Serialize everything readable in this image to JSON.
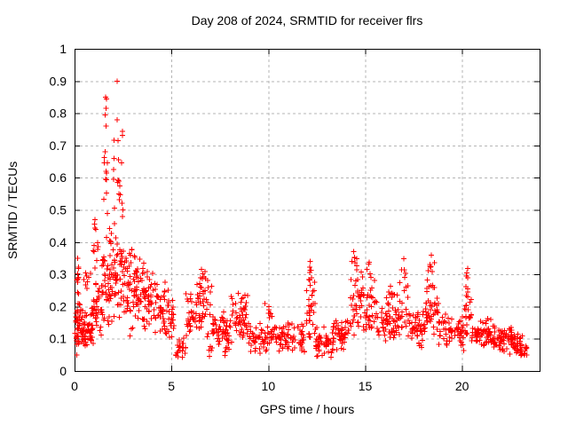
{
  "chart_data": {
    "type": "scatter",
    "title": "Day 208 of 2024, SRMTID for receiver flrs",
    "xlabel": "GPS time / hours",
    "ylabel": "SRMTID / TECUs",
    "xlim": [
      0,
      24
    ],
    "ylim": [
      0,
      1
    ],
    "grid": true,
    "legend": "none",
    "marker": "plus",
    "marker_color": "#ff0000",
    "grid_color": "#b5b5b5",
    "border_color": "#000000",
    "background_color": "#ffffff",
    "xticks": {
      "values": [
        0,
        5,
        10,
        15,
        20
      ],
      "labels": [
        "0",
        "5",
        "10",
        "15",
        "20"
      ]
    },
    "yticks": {
      "values": [
        0,
        0.1,
        0.2,
        0.3,
        0.4,
        0.5,
        0.6,
        0.7,
        0.8,
        0.9,
        1
      ],
      "labels": [
        "0",
        "0.1",
        "0.2",
        "0.3",
        "0.4",
        "0.5",
        "0.6",
        "0.7",
        "0.8",
        "0.9",
        "1"
      ]
    },
    "seed": 208,
    "notable_points": [
      [
        2.2,
        0.9
      ],
      [
        1.6,
        0.85
      ],
      [
        1.64,
        0.845
      ],
      [
        1.62,
        0.815
      ],
      [
        1.58,
        0.795
      ],
      [
        2.2,
        0.78
      ],
      [
        1.62,
        0.76
      ],
      [
        2.24,
        0.715
      ],
      [
        1.58,
        0.68
      ],
      [
        2.26,
        0.655
      ],
      [
        1.63,
        0.62
      ],
      [
        2.3,
        0.59
      ],
      [
        2.21,
        0.585
      ],
      [
        2.34,
        0.575
      ],
      [
        2.3,
        0.55
      ],
      [
        2.45,
        0.52
      ],
      [
        2.06,
        0.505
      ],
      [
        2.5,
        0.5
      ],
      [
        0.15,
        0.35
      ],
      [
        1.05,
        0.47
      ],
      [
        1.1,
        0.44
      ],
      [
        12.15,
        0.34
      ],
      [
        14.4,
        0.37
      ],
      [
        14.46,
        0.352
      ],
      [
        15.2,
        0.338
      ],
      [
        17.0,
        0.348
      ],
      [
        18.42,
        0.36
      ],
      [
        18.35,
        0.33
      ],
      [
        20.3,
        0.318
      ],
      [
        6.55,
        0.315
      ]
    ],
    "density_segments": [
      [
        0.02,
        0.3,
        0.04,
        0.22,
        40
      ],
      [
        0.08,
        0.22,
        0.2,
        0.35,
        10
      ],
      [
        0.3,
        0.9,
        0.06,
        0.2,
        55
      ],
      [
        0.45,
        0.85,
        0.2,
        0.33,
        8
      ],
      [
        0.9,
        1.4,
        0.08,
        0.3,
        40
      ],
      [
        0.95,
        1.25,
        0.3,
        0.47,
        10
      ],
      [
        1.4,
        1.9,
        0.1,
        0.45,
        50
      ],
      [
        1.5,
        1.78,
        0.45,
        0.72,
        9
      ],
      [
        1.9,
        2.55,
        0.12,
        0.5,
        55
      ],
      [
        2.0,
        2.5,
        0.5,
        0.78,
        10
      ],
      [
        2.55,
        3.1,
        0.1,
        0.42,
        45
      ],
      [
        3.1,
        3.6,
        0.12,
        0.38,
        42
      ],
      [
        3.6,
        4.3,
        0.1,
        0.33,
        48
      ],
      [
        4.3,
        4.9,
        0.07,
        0.3,
        40
      ],
      [
        4.9,
        5.2,
        0.08,
        0.26,
        16
      ],
      [
        5.2,
        5.75,
        0.03,
        0.12,
        22
      ],
      [
        5.75,
        6.25,
        0.08,
        0.26,
        30
      ],
      [
        6.25,
        7.1,
        0.09,
        0.3,
        46
      ],
      [
        6.45,
        6.75,
        0.26,
        0.32,
        5
      ],
      [
        6.8,
        7.1,
        0.04,
        0.09,
        5
      ],
      [
        7.1,
        8.05,
        0.06,
        0.2,
        55
      ],
      [
        7.75,
        8.0,
        0.04,
        0.08,
        5
      ],
      [
        8.05,
        9.0,
        0.07,
        0.25,
        52
      ],
      [
        9.0,
        11.9,
        0.05,
        0.16,
        135
      ],
      [
        9.8,
        10.2,
        0.15,
        0.23,
        8
      ],
      [
        11.9,
        12.45,
        0.08,
        0.31,
        32
      ],
      [
        12.05,
        12.3,
        0.27,
        0.345,
        6
      ],
      [
        12.45,
        13.3,
        0.03,
        0.14,
        46
      ],
      [
        13.3,
        14.2,
        0.06,
        0.18,
        50
      ],
      [
        14.2,
        14.85,
        0.1,
        0.31,
        38
      ],
      [
        14.3,
        14.6,
        0.3,
        0.37,
        6
      ],
      [
        14.85,
        15.6,
        0.1,
        0.3,
        40
      ],
      [
        15.05,
        15.35,
        0.27,
        0.34,
        5
      ],
      [
        15.6,
        16.5,
        0.07,
        0.24,
        46
      ],
      [
        16.1,
        16.45,
        0.21,
        0.3,
        6
      ],
      [
        16.5,
        17.3,
        0.08,
        0.28,
        40
      ],
      [
        16.85,
        17.15,
        0.27,
        0.35,
        4
      ],
      [
        17.3,
        18.1,
        0.06,
        0.2,
        46
      ],
      [
        18.1,
        18.8,
        0.1,
        0.3,
        44
      ],
      [
        18.25,
        18.6,
        0.28,
        0.36,
        6
      ],
      [
        18.8,
        20.1,
        0.06,
        0.19,
        62
      ],
      [
        20.1,
        20.5,
        0.1,
        0.28,
        24
      ],
      [
        20.22,
        20.42,
        0.27,
        0.32,
        3
      ],
      [
        20.5,
        21.6,
        0.06,
        0.17,
        62
      ],
      [
        21.6,
        22.6,
        0.05,
        0.15,
        62
      ],
      [
        22.6,
        23.1,
        0.04,
        0.12,
        40
      ],
      [
        23.1,
        23.35,
        0.04,
        0.09,
        10
      ]
    ]
  }
}
